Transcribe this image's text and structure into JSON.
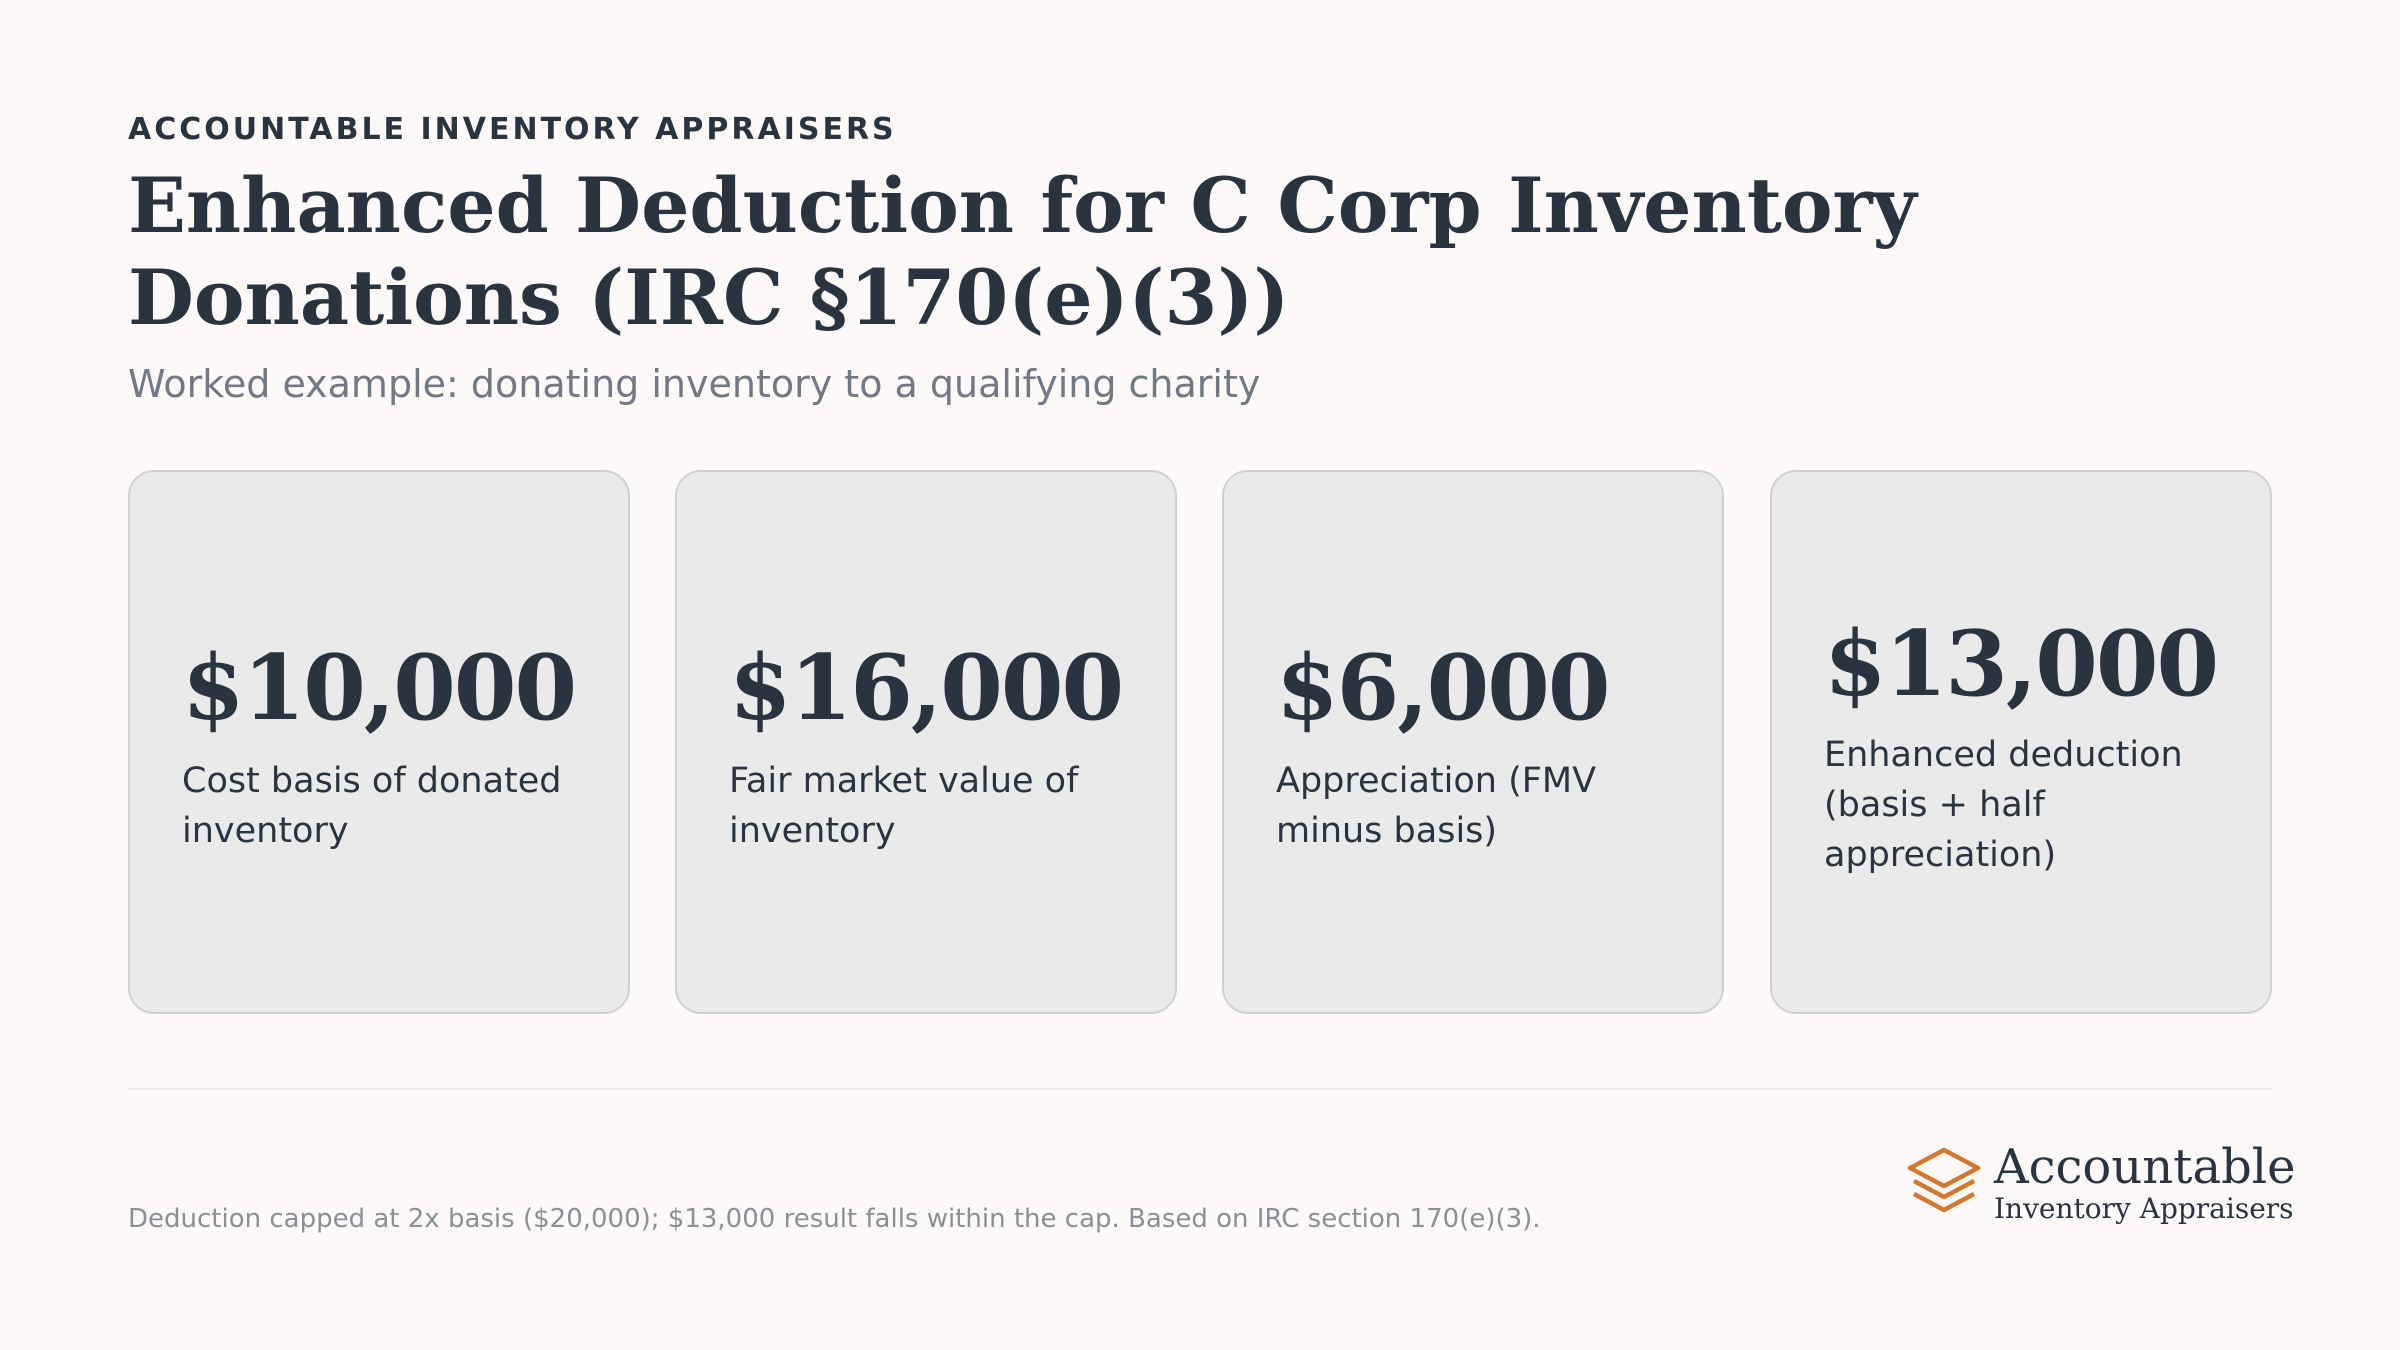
{
  "header": {
    "eyebrow": "ACCOUNTABLE INVENTORY APPRAISERS",
    "title": "Enhanced Deduction for C Corp Inventory Donations (IRC §170(e)(3))",
    "subtitle": "Worked example: donating inventory to a qualifying charity"
  },
  "cards": [
    {
      "value": "$10,000",
      "label": "Cost basis of donated inventory"
    },
    {
      "value": "$16,000",
      "label": "Fair market value of inventory"
    },
    {
      "value": "$6,000",
      "label": "Appreciation (FMV minus basis)"
    },
    {
      "value": "$13,000",
      "label": "Enhanced deduction (basis + half appreciation)"
    }
  ],
  "footer": {
    "note": "Deduction capped at 2x basis ($20,000); $13,000 result falls within the cap. Based on IRC section 170(e)(3).",
    "logo_name": "Accountable",
    "logo_sub": "Inventory Appraisers"
  },
  "colors": {
    "text": "#2a3441",
    "muted": "#737984",
    "card_bg": "#ebeaea",
    "accent": "#d4782e"
  },
  "icons": {
    "logo": "stacked-layers-icon"
  }
}
